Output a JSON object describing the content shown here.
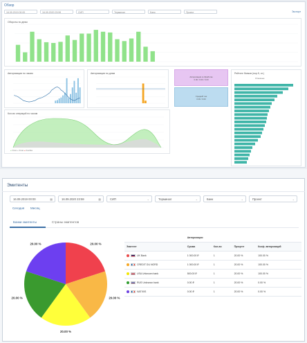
{
  "dashboard": {
    "title": "Обзор",
    "corner_link": "Экспорт",
    "filters": [
      "16.09.2019 00:00",
      "16.09.2020 23:59",
      "СИП",
      "Терминал",
      "Банк",
      "Проект"
    ],
    "colors": {
      "green": "#90e28a",
      "orange": "#f5a623",
      "teal": "#3fb5a8",
      "blue": "#5b9ec9",
      "purple_box": "#e7c6f2",
      "blue_box": "#bcdcf0"
    },
    "charts": {
      "daily": {
        "title": "Обороты по дням",
        "values": [
          45,
          25,
          80,
          60,
          52,
          50,
          53,
          70,
          58,
          75,
          75,
          85,
          80,
          78,
          60,
          55,
          62,
          80,
          40,
          28,
          0,
          0,
          0,
          0,
          0,
          0,
          0,
          0,
          0,
          0,
          0,
          0,
          0,
          0,
          0,
          0,
          0,
          0,
          0,
          0
        ]
      },
      "hourly": {
        "title": "Авторизации по часам"
      },
      "weekday": {
        "title": "Авторизации по дням"
      },
      "purple_box": {
        "line1": "Авторизации в обработке",
        "line2": "0.00 / 0.00 / 0.00"
      },
      "blue_box": {
        "line1": "Средний чек",
        "line2": "0.00 / 0.00"
      },
      "terminals": {
        "title": "Рейтинг банков (пор.5, от.)",
        "subtitle": "Успешные"
      },
      "area": {
        "title": "Кол-во операций по часам",
        "legend": [
          "Успех",
          "Отказ",
          "Ошибка"
        ]
      }
    }
  },
  "section": {
    "title": "Эмитенты",
    "filters": [
      {
        "value": "16.09.2019 00:00",
        "icon": "calendar-icon"
      },
      {
        "value": "16.09.2020 23:59",
        "icon": "calendar-icon"
      },
      {
        "value": "СИП",
        "icon": "chevron-down-icon"
      },
      {
        "value": "Терминал",
        "icon": "chevron-down-icon"
      },
      {
        "value": "Банк",
        "icon": "chevron-down-icon"
      },
      {
        "value": "Проект",
        "icon": "chevron-down-icon"
      }
    ],
    "period_links": [
      "Сегодня",
      "Месяц"
    ],
    "tabs": [
      "Банки эмитенты",
      "Страны эмитентов"
    ],
    "table": {
      "group_header": "Авторизации",
      "headers": [
        "Эмитент",
        "Сумма",
        "Кол-во",
        "Процент",
        "Коэф. авторизаций"
      ],
      "rows": [
        {
          "dot": "#e84a4a",
          "flag": "uk",
          "name": "UK Bank",
          "sum": "1 000.00 ₽",
          "count": "1",
          "percent": "20.00 %",
          "ratio": "100.00 %"
        },
        {
          "dot": "#f5a623",
          "flag": "fr",
          "name": "CREDIT DU NORD",
          "sum": "1 000.00 ₽",
          "count": "1",
          "percent": "20.00 %",
          "ratio": "100.00 %"
        },
        {
          "dot": "#f2e600",
          "flag": "us",
          "name": "USA Unknown bank",
          "sum": "500.00 ₽",
          "count": "1",
          "percent": "20.00 %",
          "ratio": "100.00 %"
        },
        {
          "dot": "#2e9b2e",
          "flag": "ru",
          "name": "RUS Unknown bank",
          "sum": "0.00 ₽",
          "count": "1",
          "percent": "20.00 %",
          "ratio": "0.00 %"
        },
        {
          "dot": "#6b3fe0",
          "flag": "fr",
          "name": "NATIXIS",
          "sum": "0.00 ₽",
          "count": "1",
          "percent": "20.00 %",
          "ratio": "0.00 %"
        }
      ]
    },
    "chart_data": {
      "type": "pie",
      "categories": [
        "UK Bank",
        "CREDIT DU NORD",
        "USA Unknown bank",
        "RUS Unknown bank",
        "NATIXIS"
      ],
      "values": [
        20,
        20,
        20,
        20,
        20
      ],
      "labels": [
        "20.00 %",
        "20.00 %",
        "20.00 %",
        "20.00 %",
        "20.00 %"
      ],
      "colors": [
        "#f0414d",
        "#f9b846",
        "#ffff3a",
        "#3a9a2f",
        "#6d3ff0"
      ]
    }
  }
}
